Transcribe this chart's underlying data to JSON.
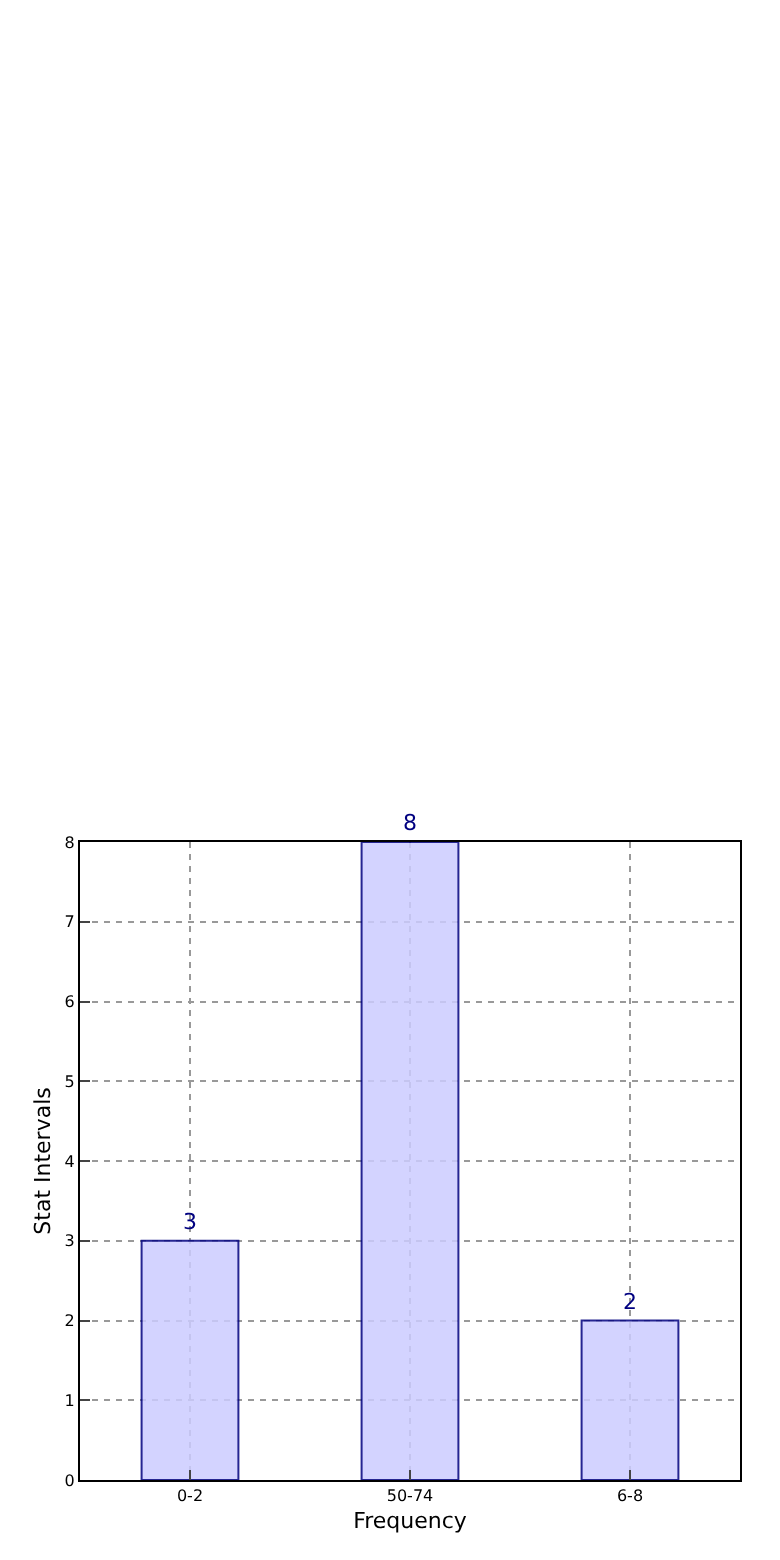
{
  "chart_data": {
    "type": "bar",
    "xlabel": "Frequency",
    "ylabel": "Stat Intervals",
    "categories": [
      "0-2",
      "50-74",
      "6-8"
    ],
    "values": [
      3,
      8,
      2
    ],
    "color": "#ccccff",
    "ylim": [
      0,
      8
    ],
    "yticks": [
      0,
      1,
      2,
      3,
      4,
      5,
      6,
      7,
      8
    ],
    "grid": true,
    "data_labels": true
  }
}
